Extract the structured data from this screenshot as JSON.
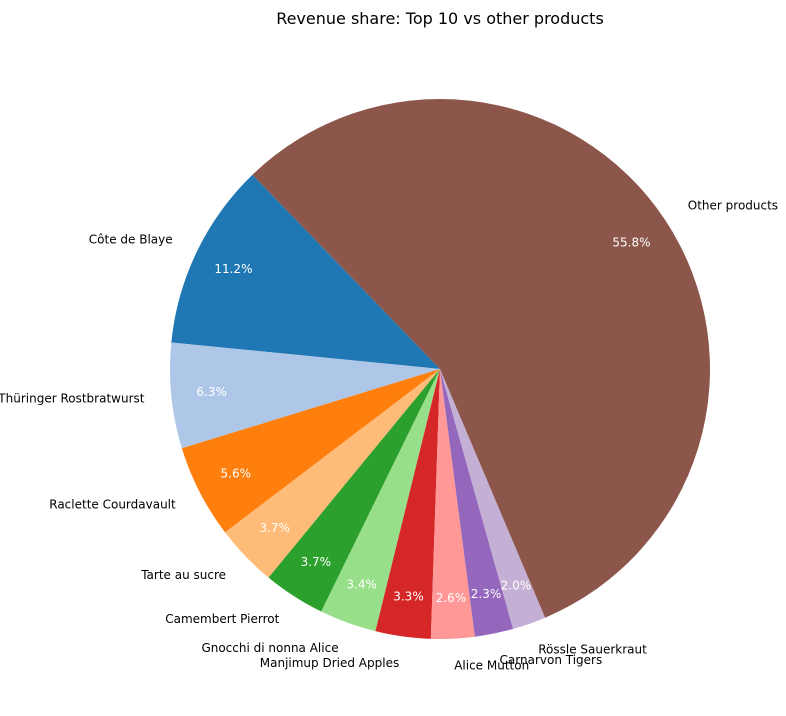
{
  "chart_data": {
    "type": "pie",
    "title": "Revenue share: Top 10 vs other products",
    "start_angle_deg": 134,
    "direction": "counterclockwise",
    "slices": [
      {
        "label": "Côte de Blaye",
        "value": 11.2,
        "pct_label": "11.2%",
        "color": "#1f77b4"
      },
      {
        "label": "Thüringer Rostbratwurst",
        "value": 6.3,
        "pct_label": "6.3%",
        "color": "#aec7e8"
      },
      {
        "label": "Raclette Courdavault",
        "value": 5.6,
        "pct_label": "5.6%",
        "color": "#ff7f0e"
      },
      {
        "label": "Tarte au sucre",
        "value": 3.7,
        "pct_label": "3.7%",
        "color": "#ffbb78"
      },
      {
        "label": "Camembert Pierrot",
        "value": 3.7,
        "pct_label": "3.7%",
        "color": "#2ca02c"
      },
      {
        "label": "Gnocchi di nonna Alice",
        "value": 3.4,
        "pct_label": "3.4%",
        "color": "#98df8a"
      },
      {
        "label": "Manjimup Dried Apples",
        "value": 3.3,
        "pct_label": "3.3%",
        "color": "#d62728"
      },
      {
        "label": "Alice Mutton",
        "value": 2.6,
        "pct_label": "2.6%",
        "color": "#ff9896"
      },
      {
        "label": "Carnarvon Tigers",
        "value": 2.3,
        "pct_label": "2.3%",
        "color": "#9467bd"
      },
      {
        "label": "Rössle Sauerkraut",
        "value": 2.0,
        "pct_label": "2.0%",
        "color": "#c5b0d5"
      },
      {
        "label": "Other products",
        "value": 55.8,
        "pct_label": "55.8%",
        "color": "#8c564b"
      }
    ]
  }
}
